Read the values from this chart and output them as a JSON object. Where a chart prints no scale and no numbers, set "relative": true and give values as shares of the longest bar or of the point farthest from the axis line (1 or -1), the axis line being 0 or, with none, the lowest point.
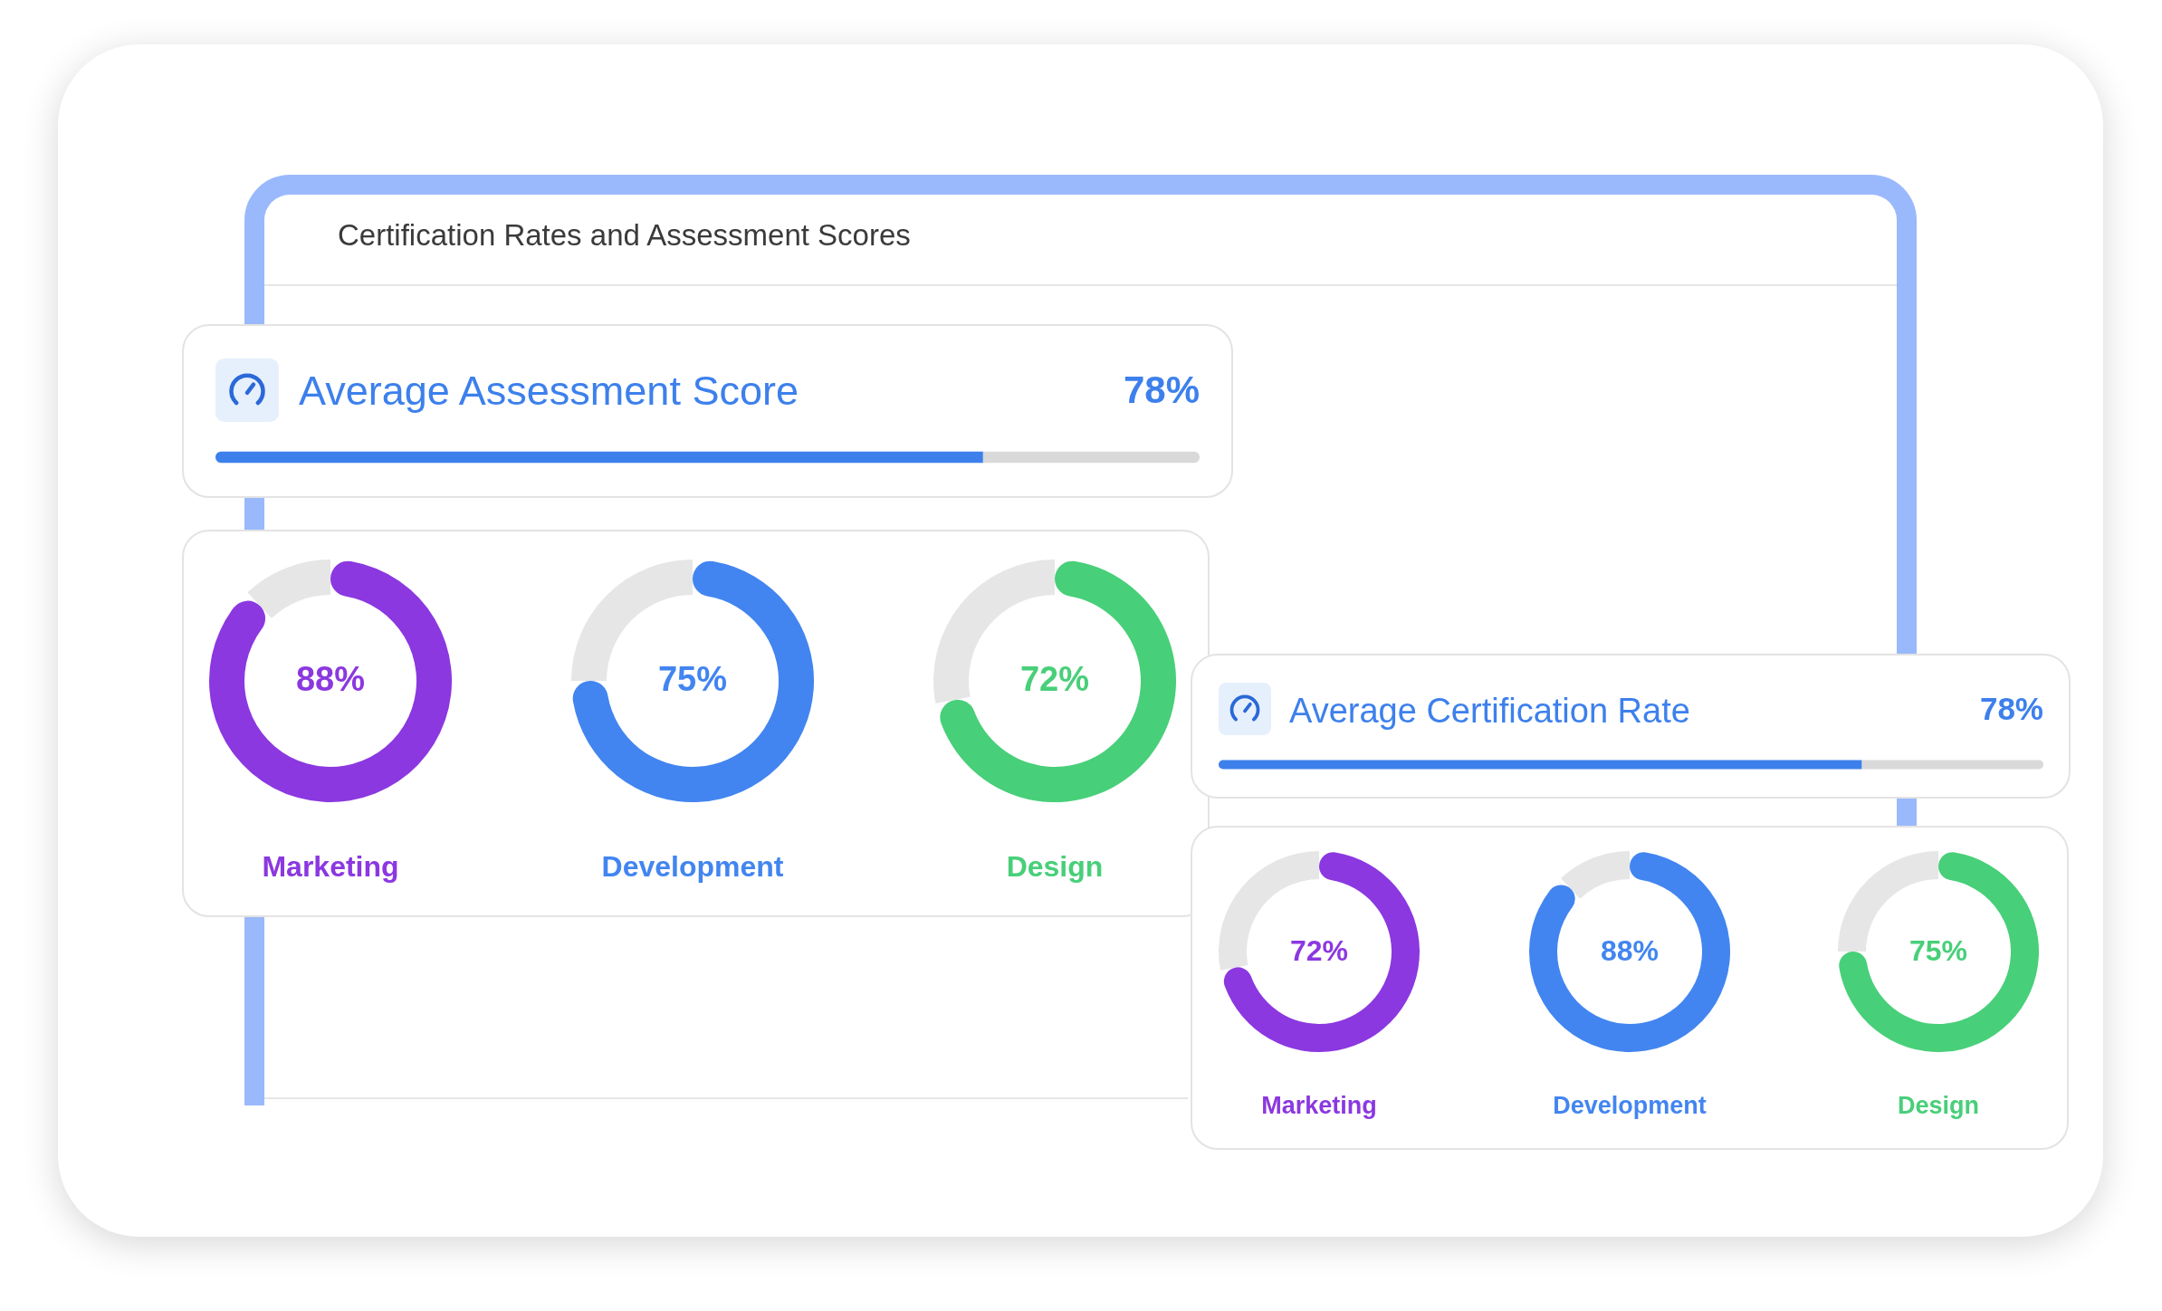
{
  "chart_data": [
    {
      "type": "other",
      "title": "Certification Rates and Assessment Scores"
    },
    {
      "type": "bar",
      "orientation": "horizontal",
      "stacked": true,
      "relative": true,
      "title": "Average Assessment Score",
      "categories": [
        null
      ],
      "series": [
        {
          "color": "#3d80ec",
          "values": [
            0.78
          ]
        },
        {
          "color": "#d9d9d9",
          "values": [
            0.22
          ]
        }
      ],
      "annotations": [
        "78%"
      ]
    },
    {
      "type": "donut",
      "title": "Marketing",
      "categories": [
        null,
        null
      ],
      "values": [
        88,
        12
      ],
      "colors": [
        "#8b38e0",
        "#e6e6e6"
      ],
      "value_labels": [
        "88%",
        null
      ]
    },
    {
      "type": "donut",
      "title": "Development",
      "categories": [
        null,
        null
      ],
      "values": [
        75,
        25
      ],
      "colors": [
        "#4285f0",
        "#e6e6e6"
      ],
      "value_labels": [
        "75%",
        null
      ]
    },
    {
      "type": "donut",
      "title": "Design",
      "categories": [
        null,
        null
      ],
      "values": [
        72,
        28
      ],
      "colors": [
        "#48cf79",
        "#e6e6e6"
      ],
      "value_labels": [
        "72%",
        null
      ]
    },
    {
      "type": "bar",
      "orientation": "horizontal",
      "stacked": true,
      "relative": true,
      "title": "Average Certification Rate",
      "categories": [
        null
      ],
      "series": [
        {
          "color": "#3d80ec",
          "values": [
            0.78
          ]
        },
        {
          "color": "#d9d9d9",
          "values": [
            0.22
          ]
        }
      ],
      "annotations": [
        "78%"
      ]
    },
    {
      "type": "donut",
      "title": "Marketing",
      "categories": [
        null,
        null
      ],
      "values": [
        72,
        28
      ],
      "colors": [
        "#8b38e0",
        "#e6e6e6"
      ],
      "value_labels": [
        "72%",
        null
      ]
    },
    {
      "type": "donut",
      "title": "Development",
      "categories": [
        null,
        null
      ],
      "values": [
        88,
        12
      ],
      "colors": [
        "#4285f0",
        "#e6e6e6"
      ],
      "value_labels": [
        "88%",
        null
      ]
    },
    {
      "type": "donut",
      "title": "Design",
      "categories": [
        null,
        null
      ],
      "values": [
        75,
        25
      ],
      "colors": [
        "#48cf79",
        "#e6e6e6"
      ],
      "value_labels": [
        "75%",
        null
      ]
    }
  ]
}
